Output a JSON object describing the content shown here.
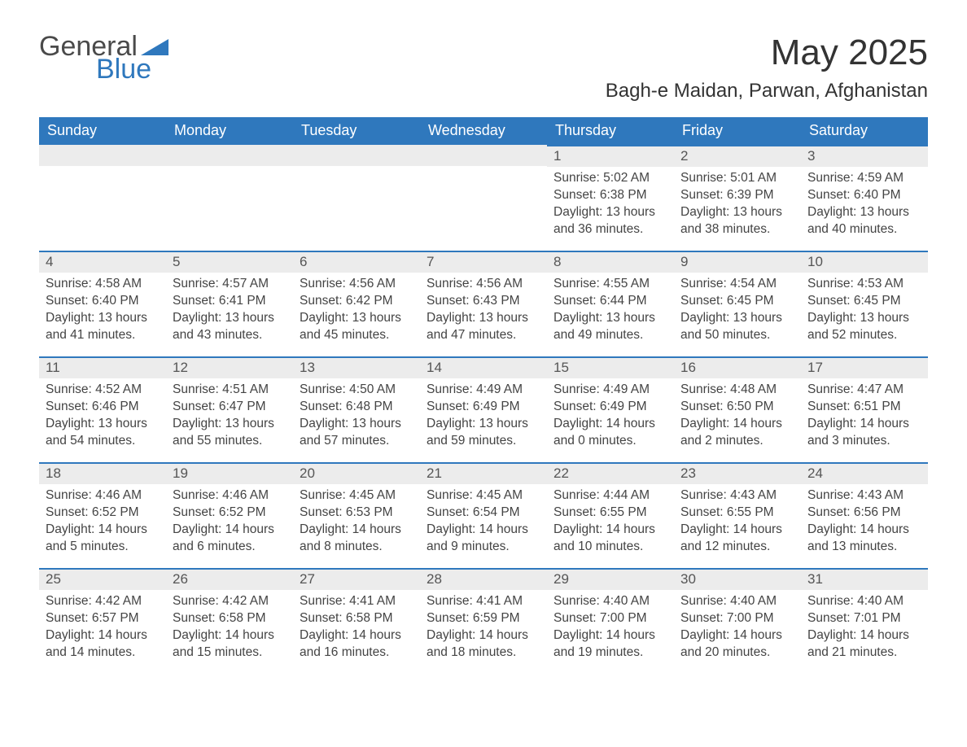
{
  "brand": {
    "word1": "General",
    "word2": "Blue",
    "text_color": "#4a4a4a",
    "accent_color": "#2f78bd"
  },
  "title": "May 2025",
  "subtitle": "Bagh-e Maidan, Parwan, Afghanistan",
  "colors": {
    "header_bg": "#2f78bd",
    "header_text": "#ffffff",
    "daynum_bg": "#ececec",
    "daynum_border": "#2f78bd",
    "body_text": "#444444",
    "page_bg": "#ffffff"
  },
  "typography": {
    "title_fontsize": 44,
    "subtitle_fontsize": 24,
    "header_fontsize": 18,
    "daynum_fontsize": 17,
    "cell_fontsize": 15.5,
    "font_family": "Segoe UI / Helvetica Neue"
  },
  "weekdays": [
    "Sunday",
    "Monday",
    "Tuesday",
    "Wednesday",
    "Thursday",
    "Friday",
    "Saturday"
  ],
  "labels": {
    "sunrise": "Sunrise:",
    "sunset": "Sunset:",
    "daylight": "Daylight:"
  },
  "weeks": [
    [
      null,
      null,
      null,
      null,
      {
        "n": "1",
        "sunrise": "5:02 AM",
        "sunset": "6:38 PM",
        "daylight": "13 hours and 36 minutes."
      },
      {
        "n": "2",
        "sunrise": "5:01 AM",
        "sunset": "6:39 PM",
        "daylight": "13 hours and 38 minutes."
      },
      {
        "n": "3",
        "sunrise": "4:59 AM",
        "sunset": "6:40 PM",
        "daylight": "13 hours and 40 minutes."
      }
    ],
    [
      {
        "n": "4",
        "sunrise": "4:58 AM",
        "sunset": "6:40 PM",
        "daylight": "13 hours and 41 minutes."
      },
      {
        "n": "5",
        "sunrise": "4:57 AM",
        "sunset": "6:41 PM",
        "daylight": "13 hours and 43 minutes."
      },
      {
        "n": "6",
        "sunrise": "4:56 AM",
        "sunset": "6:42 PM",
        "daylight": "13 hours and 45 minutes."
      },
      {
        "n": "7",
        "sunrise": "4:56 AM",
        "sunset": "6:43 PM",
        "daylight": "13 hours and 47 minutes."
      },
      {
        "n": "8",
        "sunrise": "4:55 AM",
        "sunset": "6:44 PM",
        "daylight": "13 hours and 49 minutes."
      },
      {
        "n": "9",
        "sunrise": "4:54 AM",
        "sunset": "6:45 PM",
        "daylight": "13 hours and 50 minutes."
      },
      {
        "n": "10",
        "sunrise": "4:53 AM",
        "sunset": "6:45 PM",
        "daylight": "13 hours and 52 minutes."
      }
    ],
    [
      {
        "n": "11",
        "sunrise": "4:52 AM",
        "sunset": "6:46 PM",
        "daylight": "13 hours and 54 minutes."
      },
      {
        "n": "12",
        "sunrise": "4:51 AM",
        "sunset": "6:47 PM",
        "daylight": "13 hours and 55 minutes."
      },
      {
        "n": "13",
        "sunrise": "4:50 AM",
        "sunset": "6:48 PM",
        "daylight": "13 hours and 57 minutes."
      },
      {
        "n": "14",
        "sunrise": "4:49 AM",
        "sunset": "6:49 PM",
        "daylight": "13 hours and 59 minutes."
      },
      {
        "n": "15",
        "sunrise": "4:49 AM",
        "sunset": "6:49 PM",
        "daylight": "14 hours and 0 minutes."
      },
      {
        "n": "16",
        "sunrise": "4:48 AM",
        "sunset": "6:50 PM",
        "daylight": "14 hours and 2 minutes."
      },
      {
        "n": "17",
        "sunrise": "4:47 AM",
        "sunset": "6:51 PM",
        "daylight": "14 hours and 3 minutes."
      }
    ],
    [
      {
        "n": "18",
        "sunrise": "4:46 AM",
        "sunset": "6:52 PM",
        "daylight": "14 hours and 5 minutes."
      },
      {
        "n": "19",
        "sunrise": "4:46 AM",
        "sunset": "6:52 PM",
        "daylight": "14 hours and 6 minutes."
      },
      {
        "n": "20",
        "sunrise": "4:45 AM",
        "sunset": "6:53 PM",
        "daylight": "14 hours and 8 minutes."
      },
      {
        "n": "21",
        "sunrise": "4:45 AM",
        "sunset": "6:54 PM",
        "daylight": "14 hours and 9 minutes."
      },
      {
        "n": "22",
        "sunrise": "4:44 AM",
        "sunset": "6:55 PM",
        "daylight": "14 hours and 10 minutes."
      },
      {
        "n": "23",
        "sunrise": "4:43 AM",
        "sunset": "6:55 PM",
        "daylight": "14 hours and 12 minutes."
      },
      {
        "n": "24",
        "sunrise": "4:43 AM",
        "sunset": "6:56 PM",
        "daylight": "14 hours and 13 minutes."
      }
    ],
    [
      {
        "n": "25",
        "sunrise": "4:42 AM",
        "sunset": "6:57 PM",
        "daylight": "14 hours and 14 minutes."
      },
      {
        "n": "26",
        "sunrise": "4:42 AM",
        "sunset": "6:58 PM",
        "daylight": "14 hours and 15 minutes."
      },
      {
        "n": "27",
        "sunrise": "4:41 AM",
        "sunset": "6:58 PM",
        "daylight": "14 hours and 16 minutes."
      },
      {
        "n": "28",
        "sunrise": "4:41 AM",
        "sunset": "6:59 PM",
        "daylight": "14 hours and 18 minutes."
      },
      {
        "n": "29",
        "sunrise": "4:40 AM",
        "sunset": "7:00 PM",
        "daylight": "14 hours and 19 minutes."
      },
      {
        "n": "30",
        "sunrise": "4:40 AM",
        "sunset": "7:00 PM",
        "daylight": "14 hours and 20 minutes."
      },
      {
        "n": "31",
        "sunrise": "4:40 AM",
        "sunset": "7:01 PM",
        "daylight": "14 hours and 21 minutes."
      }
    ]
  ]
}
